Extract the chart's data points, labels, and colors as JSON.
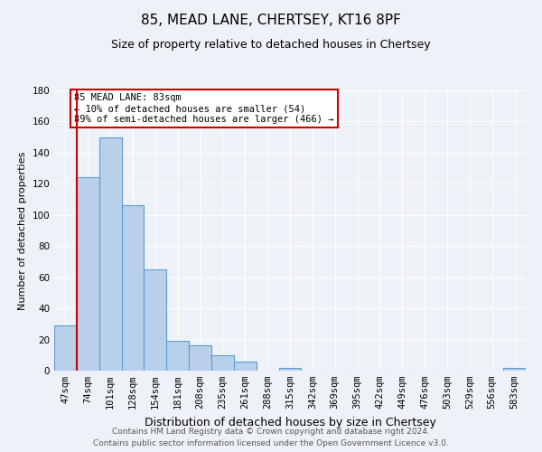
{
  "title_line1": "85, MEAD LANE, CHERTSEY, KT16 8PF",
  "title_line2": "Size of property relative to detached houses in Chertsey",
  "xlabel": "Distribution of detached houses by size in Chertsey",
  "ylabel": "Number of detached properties",
  "bar_labels": [
    "47sqm",
    "74sqm",
    "101sqm",
    "128sqm",
    "154sqm",
    "181sqm",
    "208sqm",
    "235sqm",
    "261sqm",
    "288sqm",
    "315sqm",
    "342sqm",
    "369sqm",
    "395sqm",
    "422sqm",
    "449sqm",
    "476sqm",
    "503sqm",
    "529sqm",
    "556sqm",
    "583sqm"
  ],
  "bar_values": [
    29,
    124,
    150,
    106,
    65,
    19,
    16,
    10,
    6,
    0,
    2,
    0,
    0,
    0,
    0,
    0,
    0,
    0,
    0,
    0,
    2
  ],
  "bar_color": "#b8d0ea",
  "bar_edge_color": "#5b9bd5",
  "ylim": [
    0,
    180
  ],
  "yticks": [
    0,
    20,
    40,
    60,
    80,
    100,
    120,
    140,
    160,
    180
  ],
  "property_line_x": 1.0,
  "property_line_color": "#cc0000",
  "annotation_text": "85 MEAD LANE: 83sqm\n← 10% of detached houses are smaller (54)\n89% of semi-detached houses are larger (466) →",
  "annotation_box_color": "#ffffff",
  "annotation_box_edge_color": "#cc0000",
  "footer_line1": "Contains HM Land Registry data © Crown copyright and database right 2024.",
  "footer_line2": "Contains public sector information licensed under the Open Government Licence v3.0.",
  "background_color": "#eef2f8",
  "grid_color": "#ffffff",
  "title_fontsize": 11,
  "subtitle_fontsize": 9,
  "xlabel_fontsize": 9,
  "ylabel_fontsize": 8,
  "tick_fontsize": 7.5,
  "footer_fontsize": 6.5
}
